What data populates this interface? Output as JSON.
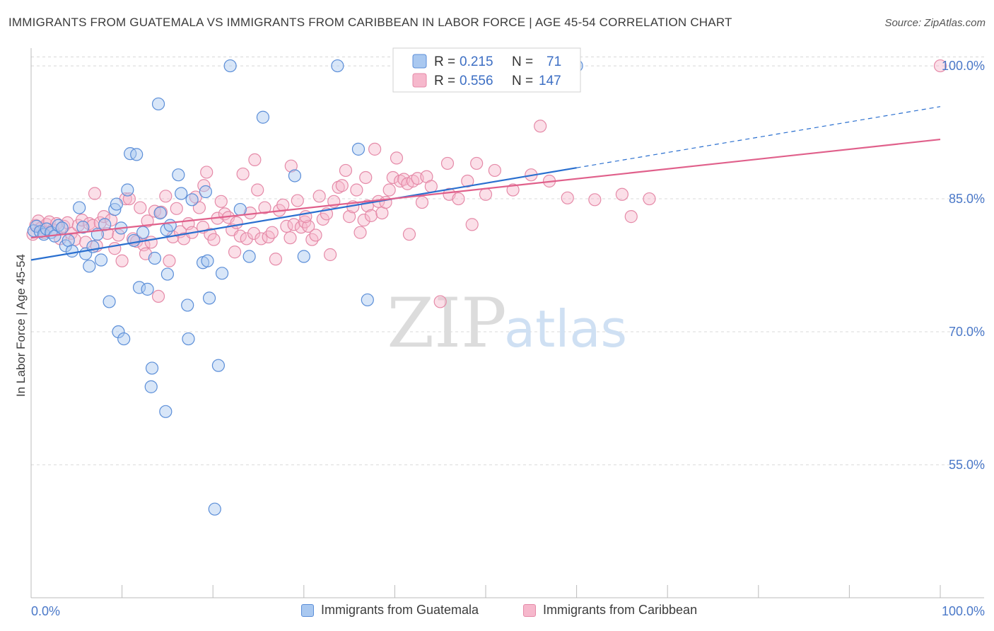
{
  "header": {
    "title": "IMMIGRANTS FROM GUATEMALA VS IMMIGRANTS FROM CARIBBEAN IN LABOR FORCE | AGE 45-54 CORRELATION CHART",
    "source": "Source: ZipAtlas.com"
  },
  "watermark": {
    "zip": "ZIP",
    "atlas": "atlas"
  },
  "colors": {
    "blue_fill": "#a9c8f0",
    "blue_stroke": "#5b8ed8",
    "blue_line": "#2a6fcf",
    "pink_fill": "#f6b8cc",
    "pink_stroke": "#e58aa8",
    "pink_line": "#e0608b",
    "axis_text": "#4a78c8",
    "grid": "#d8d8d8"
  },
  "legend": {
    "rows": [
      {
        "r_label": "R =",
        "r_value": "0.215",
        "n_label": "N =",
        "n_value": "71"
      },
      {
        "r_label": "R =",
        "r_value": "0.556",
        "n_label": "N =",
        "n_value": "147"
      }
    ]
  },
  "chart_data": {
    "type": "scatter",
    "title": "IMMIGRANTS FROM GUATEMALA VS IMMIGRANTS FROM CARIBBEAN IN LABOR FORCE | AGE 45-54 CORRELATION CHART",
    "xlabel": "",
    "ylabel": "In Labor Force | Age 45-54",
    "xlim": [
      0,
      100
    ],
    "ylim": [
      40,
      102
    ],
    "x_tick_labels": [
      "0.0%",
      "100.0%"
    ],
    "y_ticks": [
      55,
      70,
      85,
      100
    ],
    "y_tick_labels": [
      "55.0%",
      "70.0%",
      "85.0%",
      "100.0%"
    ],
    "grid": true,
    "series": [
      {
        "name": "Immigrants from Guatemala",
        "color": "#a9c8f0",
        "r": 0.215,
        "n": 71,
        "trend": {
          "x0": 0,
          "y0": 78.1,
          "x1": 60,
          "y1": 88.5,
          "dash_to_x": 100,
          "dash_to_y": 95.4
        },
        "points": [
          [
            0.3,
            81.4
          ],
          [
            0.6,
            81.9
          ],
          [
            1.0,
            81.3
          ],
          [
            1.4,
            81.0
          ],
          [
            1.7,
            81.6
          ],
          [
            2.2,
            81.2
          ],
          [
            2.6,
            80.8
          ],
          [
            3.0,
            82.0
          ],
          [
            3.4,
            81.7
          ],
          [
            3.8,
            79.7
          ],
          [
            4.1,
            80.3
          ],
          [
            4.5,
            79.1
          ],
          [
            5.3,
            84.0
          ],
          [
            5.7,
            81.8
          ],
          [
            6.0,
            78.8
          ],
          [
            6.4,
            77.4
          ],
          [
            6.8,
            79.6
          ],
          [
            7.3,
            81.0
          ],
          [
            7.7,
            78.1
          ],
          [
            8.1,
            82.1
          ],
          [
            8.6,
            73.4
          ],
          [
            9.2,
            83.8
          ],
          [
            9.4,
            84.4
          ],
          [
            9.6,
            70.0
          ],
          [
            9.9,
            81.7
          ],
          [
            10.2,
            69.2
          ],
          [
            10.6,
            86.0
          ],
          [
            10.9,
            90.1
          ],
          [
            11.3,
            80.3
          ],
          [
            11.6,
            90.0
          ],
          [
            11.9,
            75.0
          ],
          [
            12.3,
            81.2
          ],
          [
            12.8,
            74.8
          ],
          [
            13.2,
            63.8
          ],
          [
            13.3,
            65.9
          ],
          [
            13.6,
            78.3
          ],
          [
            14.0,
            95.7
          ],
          [
            14.2,
            83.4
          ],
          [
            14.8,
            61.0
          ],
          [
            14.9,
            81.5
          ],
          [
            15.0,
            76.5
          ],
          [
            15.3,
            82.0
          ],
          [
            16.2,
            87.7
          ],
          [
            16.5,
            85.6
          ],
          [
            17.2,
            73.0
          ],
          [
            17.3,
            69.2
          ],
          [
            17.7,
            84.9
          ],
          [
            18.9,
            77.8
          ],
          [
            19.2,
            85.8
          ],
          [
            19.4,
            78.0
          ],
          [
            19.6,
            73.8
          ],
          [
            20.2,
            50.0
          ],
          [
            20.6,
            66.2
          ],
          [
            21.0,
            76.6
          ],
          [
            21.9,
            100.0
          ],
          [
            23.0,
            83.8
          ],
          [
            24.0,
            78.5
          ],
          [
            25.5,
            94.2
          ],
          [
            29.0,
            87.6
          ],
          [
            30.0,
            78.5
          ],
          [
            33.7,
            100.0
          ],
          [
            36.0,
            90.6
          ],
          [
            37.0,
            73.6
          ],
          [
            60.0,
            100.0
          ]
        ]
      },
      {
        "name": "Immigrants from Caribbean",
        "color": "#f6b8cc",
        "r": 0.556,
        "n": 147,
        "trend": {
          "x0": 0,
          "y0": 80.6,
          "x1": 100,
          "y1": 91.7
        },
        "points": [
          [
            0.2,
            81.0
          ],
          [
            0.5,
            82.0
          ],
          [
            0.8,
            82.5
          ],
          [
            1.1,
            81.7
          ],
          [
            1.4,
            81.2
          ],
          [
            1.7,
            82.1
          ],
          [
            2.0,
            82.4
          ],
          [
            2.4,
            81.5
          ],
          [
            2.8,
            82.2
          ],
          [
            3.2,
            80.5
          ],
          [
            3.6,
            81.9
          ],
          [
            4.0,
            82.3
          ],
          [
            4.4,
            81.1
          ],
          [
            4.8,
            80.4
          ],
          [
            5.2,
            82.0
          ],
          [
            5.6,
            82.6
          ],
          [
            6.0,
            80.1
          ],
          [
            6.4,
            82.2
          ],
          [
            6.8,
            82.0
          ],
          [
            7.2,
            79.7
          ],
          [
            7.6,
            82.3
          ],
          [
            8.0,
            83.0
          ],
          [
            8.4,
            81.1
          ],
          [
            8.8,
            82.6
          ],
          [
            9.2,
            79.4
          ],
          [
            9.6,
            80.9
          ],
          [
            10.0,
            78.0
          ],
          [
            10.4,
            85.0
          ],
          [
            10.8,
            85.0
          ],
          [
            11.2,
            80.5
          ],
          [
            11.6,
            80.2
          ],
          [
            12.0,
            84.0
          ],
          [
            12.4,
            79.8
          ],
          [
            12.8,
            82.5
          ],
          [
            13.2,
            80.1
          ],
          [
            13.6,
            83.6
          ],
          [
            14.0,
            74.0
          ],
          [
            14.3,
            83.5
          ],
          [
            14.8,
            85.3
          ],
          [
            15.2,
            78.0
          ],
          [
            15.6,
            80.7
          ],
          [
            16.0,
            83.9
          ],
          [
            16.4,
            81.3
          ],
          [
            16.8,
            80.5
          ],
          [
            17.3,
            82.2
          ],
          [
            17.7,
            81.2
          ],
          [
            18.1,
            85.2
          ],
          [
            18.5,
            84.0
          ],
          [
            18.9,
            81.8
          ],
          [
            19.3,
            88.0
          ],
          [
            19.7,
            81.0
          ],
          [
            20.1,
            80.4
          ],
          [
            20.5,
            82.8
          ],
          [
            20.9,
            84.7
          ],
          [
            21.3,
            83.3
          ],
          [
            21.7,
            82.9
          ],
          [
            22.1,
            81.5
          ],
          [
            22.6,
            82.3
          ],
          [
            23.0,
            80.8
          ],
          [
            23.3,
            87.8
          ],
          [
            23.7,
            80.5
          ],
          [
            24.1,
            83.4
          ],
          [
            24.5,
            81.1
          ],
          [
            24.9,
            86.0
          ],
          [
            25.3,
            80.5
          ],
          [
            25.7,
            84.0
          ],
          [
            26.1,
            80.7
          ],
          [
            26.5,
            81.2
          ],
          [
            26.9,
            78.2
          ],
          [
            27.3,
            83.7
          ],
          [
            27.7,
            84.3
          ],
          [
            28.1,
            81.9
          ],
          [
            28.5,
            80.6
          ],
          [
            28.9,
            82.1
          ],
          [
            29.3,
            84.8
          ],
          [
            29.7,
            81.8
          ],
          [
            30.1,
            82.4
          ],
          [
            30.5,
            81.9
          ],
          [
            30.9,
            80.4
          ],
          [
            31.3,
            80.9
          ],
          [
            31.7,
            85.3
          ],
          [
            32.1,
            82.7
          ],
          [
            32.5,
            83.3
          ],
          [
            32.9,
            78.7
          ],
          [
            33.3,
            84.7
          ],
          [
            33.8,
            86.3
          ],
          [
            34.2,
            86.5
          ],
          [
            34.6,
            88.2
          ],
          [
            35.0,
            83.0
          ],
          [
            35.4,
            84.1
          ],
          [
            35.8,
            86.0
          ],
          [
            36.2,
            81.2
          ],
          [
            36.6,
            82.6
          ],
          [
            37.0,
            84.2
          ],
          [
            37.4,
            83.1
          ],
          [
            37.8,
            90.6
          ],
          [
            38.2,
            84.7
          ],
          [
            38.6,
            83.4
          ],
          [
            39.0,
            84.6
          ],
          [
            39.4,
            86.0
          ],
          [
            39.8,
            87.4
          ],
          [
            40.2,
            89.6
          ],
          [
            40.6,
            87.0
          ],
          [
            41.0,
            87.2
          ],
          [
            41.4,
            86.7
          ],
          [
            42.0,
            87.0
          ],
          [
            42.5,
            87.3
          ],
          [
            43.0,
            84.6
          ],
          [
            43.5,
            87.5
          ],
          [
            44.0,
            86.4
          ],
          [
            45.0,
            73.4
          ],
          [
            46.0,
            85.5
          ],
          [
            47.0,
            85.0
          ],
          [
            48.0,
            87.0
          ],
          [
            48.5,
            82.1
          ],
          [
            49.0,
            89.0
          ],
          [
            50.0,
            85.5
          ],
          [
            51.0,
            88.2
          ],
          [
            53.0,
            86.0
          ],
          [
            55.0,
            87.7
          ],
          [
            56.0,
            93.2
          ],
          [
            57.0,
            87.0
          ],
          [
            59.0,
            85.1
          ],
          [
            62.0,
            84.9
          ],
          [
            65.0,
            85.5
          ],
          [
            66.0,
            83.0
          ],
          [
            68.0,
            85.0
          ],
          [
            100.0,
            100.0
          ],
          [
            24.6,
            89.4
          ],
          [
            30.2,
            83.0
          ],
          [
            41.6,
            81.0
          ],
          [
            45.8,
            89.0
          ],
          [
            19.0,
            86.5
          ],
          [
            22.4,
            79.0
          ],
          [
            36.8,
            87.4
          ],
          [
            28.6,
            88.7
          ],
          [
            12.6,
            78.8
          ],
          [
            7.0,
            85.6
          ]
        ]
      }
    ]
  },
  "bottom_legend": {
    "items": [
      {
        "label": "Immigrants from Guatemala"
      },
      {
        "label": "Immigrants from Caribbean"
      }
    ]
  }
}
